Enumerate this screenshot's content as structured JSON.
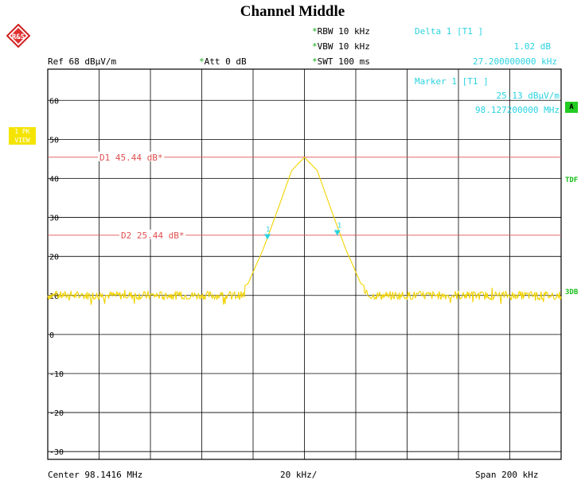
{
  "title": "Channel Middle",
  "header": {
    "rbw": "RBW 10 kHz",
    "vbw": "VBW 10 kHz",
    "swt": "SWT 100 ms",
    "ref": "Ref  68 dBµV/m",
    "att": "Att  0 dB",
    "star": "*"
  },
  "marker_info": {
    "delta_label": "Delta 1 [T1 ]",
    "delta_value": "1.02 dB",
    "delta_freq": "27.200000000 kHz",
    "marker_label": "Marker 1 [T1 ]",
    "marker_value": "25.13 dBµV/m",
    "marker_freq": "98.127200000 MHz"
  },
  "side_labels": {
    "pk_line1": "1 PK",
    "pk_line2": "VIEW",
    "a": "A",
    "tdf": "TDF",
    "db3": "3DB"
  },
  "footer": {
    "center": "Center 98.1416 MHz",
    "div": "20 kHz/",
    "span": "Span 200 kHz"
  },
  "colors": {
    "trace": "#f2d400",
    "display_line": "#e05050",
    "marker": "#2ad2e0",
    "grid": "#000000"
  },
  "chart_data": {
    "type": "line",
    "xlim": [
      98.0416,
      98.2416
    ],
    "ylim": [
      -32,
      68
    ],
    "yticks": [
      -30,
      -20,
      -10,
      0,
      10,
      20,
      30,
      40,
      50,
      60
    ],
    "ytick_labels": [
      "-30",
      "-20",
      "-10",
      "0",
      "10",
      "20",
      "30",
      "40",
      "50",
      "60"
    ],
    "x_divisions": 10,
    "noise_floor": 10.0,
    "peak": {
      "x": 98.1416,
      "y": 45.44
    },
    "display_lines": [
      {
        "name": "D1",
        "value": 45.44,
        "label": "D1 45.44 dB*"
      },
      {
        "name": "D2",
        "value": 25.44,
        "label": "D2 25.44 dB*"
      }
    ],
    "markers": [
      {
        "x": 98.1272,
        "y": 25.13,
        "label": "1"
      },
      {
        "x": 98.1544,
        "y": 26.15,
        "label": "1"
      }
    ],
    "series": [
      {
        "x": [
          98.0416,
          98.1116,
          98.1196,
          98.1256,
          98.1312,
          98.1366,
          98.1416,
          98.1466,
          98.152,
          98.1576,
          98.1636,
          98.1716,
          98.2416
        ],
        "y": [
          10.0,
          10.0,
          13.0,
          22.0,
          32.0,
          42.0,
          45.4,
          42.0,
          32.0,
          22.0,
          13.0,
          10.0,
          10.0
        ]
      }
    ]
  }
}
